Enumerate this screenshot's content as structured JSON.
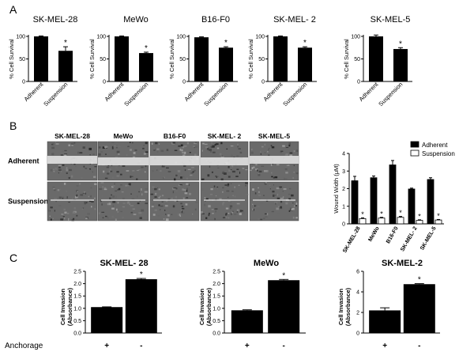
{
  "panels": {
    "a": "A",
    "b": "B",
    "c": "C"
  },
  "panel_a": {
    "ylabel": "% Cell Survival",
    "categories": [
      "Adherent",
      "Suspension"
    ],
    "charts": [
      {
        "title": "SK-MEL-28",
        "values": [
          100,
          68
        ],
        "errors": [
          1,
          9
        ],
        "sig": [
          false,
          true
        ],
        "ylim": [
          0,
          100
        ],
        "ticks": [
          "0",
          "50",
          "100"
        ]
      },
      {
        "title": "MeWo",
        "values": [
          100,
          63
        ],
        "errors": [
          1,
          2
        ],
        "sig": [
          false,
          true
        ],
        "ylim": [
          0,
          100
        ],
        "ticks": [
          "0",
          "50",
          "100"
        ]
      },
      {
        "title": "B16-F0",
        "values": [
          98,
          75
        ],
        "errors": [
          1,
          2
        ],
        "sig": [
          false,
          true
        ],
        "ylim": [
          0,
          100
        ],
        "ticks": [
          "0",
          "50",
          "100"
        ]
      },
      {
        "title": "SK-MEL- 2",
        "values": [
          100,
          75
        ],
        "errors": [
          1,
          2
        ],
        "sig": [
          false,
          true
        ],
        "ylim": [
          0,
          100
        ],
        "ticks": [
          "0",
          "50",
          "100"
        ]
      },
      {
        "title": "SK-MEL-5",
        "values": [
          100,
          72
        ],
        "errors": [
          3,
          3
        ],
        "sig": [
          false,
          true
        ],
        "ylim": [
          0,
          100
        ],
        "ticks": [
          "0",
          "50",
          "100"
        ]
      }
    ]
  },
  "panel_b": {
    "columns": [
      "SK-MEL-28",
      "MeWo",
      "B16-F0",
      "SK-MEL- 2",
      "SK-MEL-5"
    ],
    "rows": [
      "Adherent",
      "Suspension"
    ]
  },
  "chart_data": [
    {
      "type": "bar",
      "panel": "B",
      "categories": [
        "SK-MEL-28",
        "MeWo",
        "B16-F0",
        "SK-MEL- 2",
        "SK-MEL-5"
      ],
      "series": [
        {
          "name": "Adherent",
          "values": [
            2.45,
            2.62,
            3.35,
            1.98,
            2.52
          ],
          "errors": [
            0.25,
            0.1,
            0.25,
            0.05,
            0.1
          ],
          "color": "#000000"
        },
        {
          "name": "Suspension",
          "values": [
            0.3,
            0.33,
            0.37,
            0.2,
            0.22
          ],
          "errors": [
            0.04,
            0.04,
            0.05,
            0.03,
            0.03
          ],
          "color": "#ffffff"
        }
      ],
      "sig_marker": "*",
      "ylabel": "Wound Width (μM)",
      "ylim": [
        0,
        4
      ],
      "yticks": [
        "0",
        "1",
        "2",
        "3",
        "4"
      ],
      "legend": "top-right",
      "grid": false
    },
    {
      "type": "bar",
      "panel": "C",
      "title": "SK-MEL- 28",
      "categories": [
        "+",
        "-"
      ],
      "values": [
        1.05,
        2.18
      ],
      "errors": [
        0.01,
        0.03
      ],
      "sig": [
        false,
        true
      ],
      "ylabel": "Cell Invasion (Absorbance)",
      "ylim": [
        0,
        2.5
      ],
      "yticks": [
        "0.0",
        "0.5",
        "1.0",
        "1.5",
        "2.0",
        "2.5"
      ],
      "grid": false
    },
    {
      "type": "bar",
      "panel": "C",
      "title": "MeWo",
      "categories": [
        "+",
        "-"
      ],
      "values": [
        0.92,
        2.14
      ],
      "errors": [
        0.02,
        0.03
      ],
      "sig": [
        false,
        true
      ],
      "ylabel": "Cell Invasion (Absorbance)",
      "ylim": [
        0,
        2.5
      ],
      "yticks": [
        "0.0",
        "0.5",
        "1.0",
        "1.5",
        "2.0",
        "2.5"
      ],
      "grid": false
    },
    {
      "type": "bar",
      "panel": "C",
      "title": "SK-MEL-2",
      "categories": [
        "+",
        "-"
      ],
      "values": [
        2.2,
        4.75
      ],
      "errors": [
        0.25,
        0.05
      ],
      "sig": [
        false,
        true
      ],
      "ylabel": "Cell Invasion (Absorbance)",
      "ylim": [
        0,
        6
      ],
      "yticks": [
        "0",
        "2",
        "4",
        "6"
      ],
      "grid": false
    }
  ],
  "anchorage_label": "Anchorage",
  "sig_symbol": "*"
}
